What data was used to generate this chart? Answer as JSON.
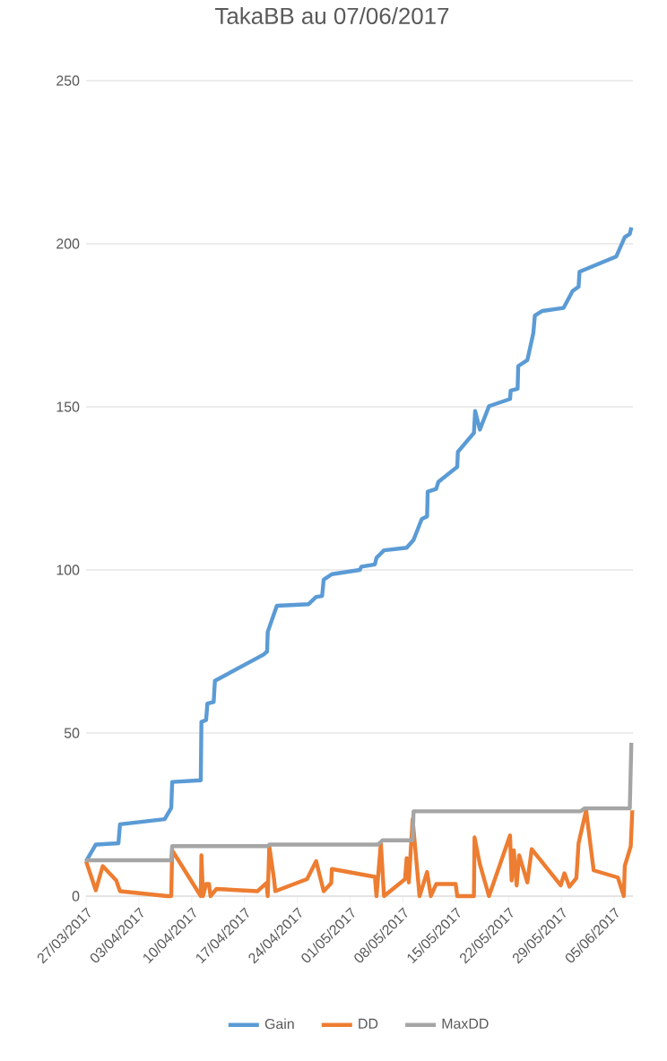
{
  "chart_data": {
    "type": "line",
    "title": "TakaBB au 07/06/2017",
    "xlim": [
      "2017-03-27",
      "2017-06-07T12:00"
    ],
    "xticks": [
      {
        "value": "2017-03-27",
        "label": "27/03/2017"
      },
      {
        "value": "2017-04-03",
        "label": "03/04/2017"
      },
      {
        "value": "2017-04-10",
        "label": "10/04/2017"
      },
      {
        "value": "2017-04-17",
        "label": "17/04/2017"
      },
      {
        "value": "2017-04-24",
        "label": "24/04/2017"
      },
      {
        "value": "2017-05-01",
        "label": "01/05/2017"
      },
      {
        "value": "2017-05-08",
        "label": "08/05/2017"
      },
      {
        "value": "2017-05-15",
        "label": "15/05/2017"
      },
      {
        "value": "2017-05-22",
        "label": "22/05/2017"
      },
      {
        "value": "2017-05-29",
        "label": "29/05/2017"
      },
      {
        "value": "2017-06-05",
        "label": "05/06/2017"
      }
    ],
    "ylim": [
      0,
      250
    ],
    "yticks": [
      0,
      50,
      100,
      150,
      200,
      250
    ],
    "grid": "y",
    "legend": "bottom",
    "marker": "none",
    "line_style": "solid",
    "series": [
      {
        "name": "Gain",
        "color": "#5b9bd5",
        "x": [
          "2017-03-27T00:00",
          "2017-03-28T07:00",
          "2017-03-31T07:00",
          "2017-03-31T12:00",
          "2017-04-06T10:00",
          "2017-04-07T07:00",
          "2017-04-07T10:00",
          "2017-04-11T05:00",
          "2017-04-11T07:00",
          "2017-04-11T22:00",
          "2017-04-12T02:00",
          "2017-04-12T22:00",
          "2017-04-13T02:00",
          "2017-04-19T12:00",
          "2017-04-20T00:00",
          "2017-04-20T02:00",
          "2017-04-21T07:00",
          "2017-04-25T12:00",
          "2017-04-26T12:00",
          "2017-04-27T07:00",
          "2017-04-27T12:00",
          "2017-04-28T14:00",
          "2017-05-02T07:00",
          "2017-05-02T12:00",
          "2017-05-04T07:00",
          "2017-05-04T12:00",
          "2017-05-05T12:00",
          "2017-05-08T12:00",
          "2017-05-09T10:00",
          "2017-05-10T12:00",
          "2017-05-11T05:00",
          "2017-05-11T07:00",
          "2017-05-12T10:00",
          "2017-05-12T17:00",
          "2017-05-15T05:00",
          "2017-05-15T07:00",
          "2017-05-17T10:00",
          "2017-05-17T14:00",
          "2017-05-18T05:00",
          "2017-05-19T10:00",
          "2017-05-22T05:00",
          "2017-05-22T07:00",
          "2017-05-23T05:00",
          "2017-05-23T07:00",
          "2017-05-24T12:00",
          "2017-05-25T07:00",
          "2017-05-25T12:00",
          "2017-05-26T12:00",
          "2017-05-29T07:00",
          "2017-05-30T12:00",
          "2017-05-31T07:00",
          "2017-05-31T10:00",
          "2017-06-05T07:00",
          "2017-06-06T10:00",
          "2017-06-07T02:00",
          "2017-06-07T07:00"
        ],
        "values": [
          10.7,
          15.8,
          16.2,
          22,
          23.6,
          27,
          35,
          35.5,
          53.4,
          54,
          59,
          59.5,
          66,
          74,
          75,
          81,
          89,
          89.5,
          91.7,
          92,
          97,
          98.7,
          100,
          101,
          101.7,
          103.7,
          106,
          106.8,
          109.2,
          115.6,
          116.4,
          124,
          124.8,
          127,
          131.6,
          136.2,
          142,
          148.7,
          143,
          150.2,
          152.4,
          155,
          155.5,
          162.5,
          164.3,
          172.6,
          178,
          179.4,
          180.3,
          185.5,
          186.8,
          191.4,
          196.1,
          202,
          203,
          205
        ]
      },
      {
        "name": "DD",
        "color": "#ed7d31",
        "x": [
          "2017-03-27T00:00",
          "2017-03-28T07:00",
          "2017-03-29T05:00",
          "2017-03-31T00:00",
          "2017-03-31T12:00",
          "2017-04-06T19:00",
          "2017-04-07T07:00",
          "2017-04-07T10:00",
          "2017-04-11T05:00",
          "2017-04-11T07:00",
          "2017-04-11T12:00",
          "2017-04-11T22:00",
          "2017-04-12T07:00",
          "2017-04-12T12:00",
          "2017-04-13T07:00",
          "2017-04-18T17:00",
          "2017-04-19T22:00",
          "2017-04-20T02:00",
          "2017-04-20T07:00",
          "2017-04-20T22:00",
          "2017-04-21T02:00",
          "2017-04-25T07:00",
          "2017-04-26T12:00",
          "2017-04-27T12:00",
          "2017-04-28T12:00",
          "2017-04-28T14:00",
          "2017-05-04T07:00",
          "2017-05-04T12:00",
          "2017-05-05T02:00",
          "2017-05-05T12:00",
          "2017-05-08T07:00",
          "2017-05-08T12:00",
          "2017-05-08T19:00",
          "2017-05-09T07:00",
          "2017-05-10T05:00",
          "2017-05-11T05:00",
          "2017-05-11T17:00",
          "2017-05-12T10:00",
          "2017-05-15T00:00",
          "2017-05-15T05:00",
          "2017-05-17T10:00",
          "2017-05-17T12:00",
          "2017-05-18T05:00",
          "2017-05-19T10:00",
          "2017-05-22T05:00",
          "2017-05-22T10:00",
          "2017-05-22T17:00",
          "2017-05-23T02:00",
          "2017-05-23T10:00",
          "2017-05-24T12:00",
          "2017-05-25T02:00",
          "2017-05-28T22:00",
          "2017-05-29T10:00",
          "2017-05-30T02:00",
          "2017-05-31T00:00",
          "2017-05-31T07:00",
          "2017-06-01T07:00",
          "2017-06-02T07:00",
          "2017-06-05T12:00",
          "2017-06-06T07:00",
          "2017-06-06T10:00",
          "2017-06-07T05:00",
          "2017-06-07T10:00"
        ],
        "values": [
          10.7,
          1.8,
          9.2,
          4.8,
          1.5,
          0,
          0,
          14,
          0,
          12.5,
          0,
          3.7,
          3.7,
          0,
          2.2,
          1.5,
          4,
          0,
          15.3,
          5.2,
          1.5,
          5.2,
          10.7,
          1.5,
          4,
          8.3,
          5.9,
          0,
          16.2,
          0,
          5.2,
          11.6,
          4.2,
          23.6,
          0,
          7.4,
          0,
          3.7,
          3.7,
          0,
          0,
          18,
          9.8,
          0,
          18.6,
          4.8,
          14,
          3.3,
          12.5,
          4.2,
          14.4,
          3.3,
          7,
          2.9,
          5.5,
          16.2,
          26.3,
          7.9,
          5.7,
          0,
          9.2,
          15.3,
          26.3
        ]
      },
      {
        "name": "MaxDD",
        "color": "#a5a5a5",
        "x": [
          "2017-03-27T00:00",
          "2017-04-07T07:00",
          "2017-04-07T10:00",
          "2017-04-20T02:00",
          "2017-04-20T07:00",
          "2017-05-04T17:00",
          "2017-05-05T07:00",
          "2017-05-09T07:00",
          "2017-05-09T10:00",
          "2017-05-31T14:00",
          "2017-06-01T02:00",
          "2017-06-07T02:00",
          "2017-06-07T07:00"
        ],
        "values": [
          11,
          11,
          15.3,
          15.3,
          15.8,
          15.8,
          17.1,
          17.1,
          26,
          26,
          26.9,
          26.9,
          47
        ]
      }
    ]
  }
}
